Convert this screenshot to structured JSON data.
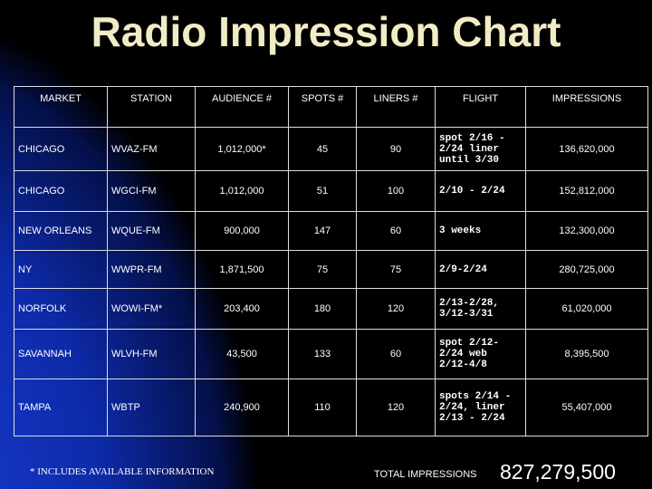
{
  "title": "Radio Impression Chart",
  "table": {
    "header": [
      "MARKET",
      "STATION",
      "AUDIENCE #",
      "SPOTS #",
      "LINERS #",
      "FLIGHT",
      "IMPRESSIONS"
    ],
    "rows": [
      [
        "CHICAGO",
        "WVAZ-FM",
        "1,012,000*",
        "45",
        "90",
        "spot 2/16 - 2/24 liner until 3/30",
        "136,620,000"
      ],
      [
        "CHICAGO",
        "WGCI-FM",
        "1,012,000",
        "51",
        "100",
        "2/10 - 2/24",
        "152,812,000"
      ],
      [
        "NEW ORLEANS",
        "WQUE-FM",
        "900,000",
        "147",
        "60",
        "3 weeks",
        "132,300,000"
      ],
      [
        "NY",
        "WWPR-FM",
        "1,871,500",
        "75",
        "75",
        "2/9-2/24",
        "280,725,000"
      ],
      [
        "NORFOLK",
        "WOWI-FM*",
        "203,400",
        "180",
        "120",
        "2/13-2/28, 3/12-3/31",
        "61,020,000"
      ],
      [
        "SAVANNAH",
        "WLVH-FM",
        "43,500",
        "133",
        "60",
        "spot 2/12-2/24 web 2/12-4/8",
        "8,395,500"
      ],
      [
        "TAMPA",
        "WBTP",
        "240,900",
        "110",
        "120",
        "spots 2/14 - 2/24, liner 2/13 - 2/24",
        "55,407,000"
      ]
    ]
  },
  "footnote": "* INCLUDES AVAILABLE INFORMATION",
  "total": {
    "label": "TOTAL IMPRESSIONS",
    "value": "827,279,500"
  }
}
